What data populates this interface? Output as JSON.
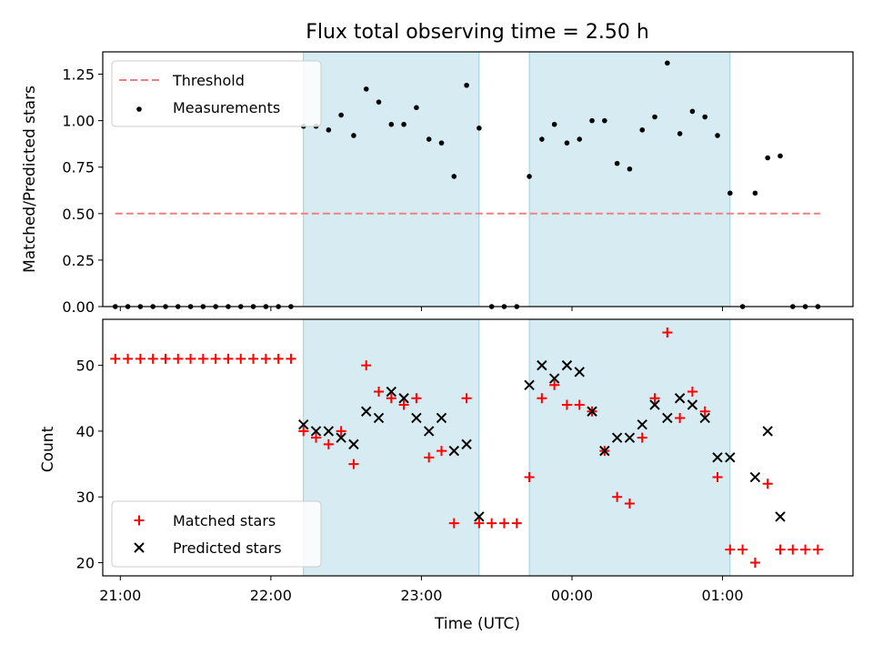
{
  "chart_data": {
    "type": "scatter",
    "title": "Flux total observing time = 2.50 h",
    "xlabel": "Time (UTC)",
    "x_ticks": [
      "21:00",
      "22:00",
      "23:00",
      "00:00",
      "01:00"
    ],
    "xlim": [
      "20:53",
      "01:52"
    ],
    "shaded_intervals": [
      [
        "22:13",
        "23:23"
      ],
      [
        "23:43",
        "01:03"
      ]
    ],
    "panels": [
      {
        "ylabel": "Matched/Predicted stars",
        "ylim": [
          0,
          1.37
        ],
        "y_ticks": [
          "0.00",
          "0.25",
          "0.50",
          "0.75",
          "1.00",
          "1.25"
        ],
        "legend_position": "top-left",
        "series": [
          {
            "name": "Threshold",
            "type": "line",
            "style": "dashed",
            "color": "#f08080",
            "x": [
              "20:58",
              "01:39"
            ],
            "y": [
              0.5,
              0.5
            ]
          },
          {
            "name": "Measurements",
            "type": "scatter",
            "marker": "dot",
            "color": "#000000",
            "x": [
              "20:58",
              "21:03",
              "21:08",
              "21:13",
              "21:18",
              "21:23",
              "21:28",
              "21:33",
              "21:38",
              "21:43",
              "21:48",
              "21:53",
              "21:58",
              "22:03",
              "22:08",
              "22:13",
              "22:18",
              "22:23",
              "22:28",
              "22:33",
              "22:38",
              "22:43",
              "22:48",
              "22:53",
              "22:58",
              "23:03",
              "23:08",
              "23:13",
              "23:18",
              "23:23",
              "23:28",
              "23:33",
              "23:38",
              "23:43",
              "23:48",
              "23:53",
              "23:58",
              "00:03",
              "00:08",
              "00:13",
              "00:18",
              "00:23",
              "00:28",
              "00:33",
              "00:38",
              "00:43",
              "00:48",
              "00:53",
              "00:58",
              "01:03",
              "01:08",
              "01:13",
              "01:18",
              "01:23",
              "01:28",
              "01:33",
              "01:38"
            ],
            "y": [
              0,
              0,
              0,
              0,
              0,
              0,
              0,
              0,
              0,
              0,
              0,
              0,
              0,
              0,
              0,
              0.97,
              0.97,
              0.95,
              1.03,
              0.92,
              1.17,
              1.1,
              0.98,
              0.98,
              1.07,
              0.9,
              0.88,
              0.7,
              1.19,
              0.96,
              0,
              0,
              0,
              0.7,
              0.9,
              0.98,
              0.88,
              0.9,
              1.0,
              1.0,
              0.77,
              0.74,
              0.95,
              1.02,
              1.31,
              0.93,
              1.05,
              1.02,
              0.92,
              0.61,
              0,
              0.61,
              0.8,
              0.81,
              0,
              0,
              0
            ]
          }
        ]
      },
      {
        "ylabel": "Count",
        "ylim": [
          18,
          57
        ],
        "y_ticks": [
          "20",
          "30",
          "40",
          "50"
        ],
        "legend_position": "bottom-left",
        "series": [
          {
            "name": "Matched stars",
            "type": "scatter",
            "marker": "plus",
            "color": "#ff0000",
            "x": [
              "20:58",
              "21:03",
              "21:08",
              "21:13",
              "21:18",
              "21:23",
              "21:28",
              "21:33",
              "21:38",
              "21:43",
              "21:48",
              "21:53",
              "21:58",
              "22:03",
              "22:08",
              "22:13",
              "22:18",
              "22:23",
              "22:28",
              "22:33",
              "22:38",
              "22:43",
              "22:48",
              "22:53",
              "22:58",
              "23:03",
              "23:08",
              "23:13",
              "23:18",
              "23:23",
              "23:28",
              "23:33",
              "23:38",
              "23:43",
              "23:48",
              "23:53",
              "23:58",
              "00:03",
              "00:08",
              "00:13",
              "00:18",
              "00:23",
              "00:28",
              "00:33",
              "00:38",
              "00:43",
              "00:48",
              "00:53",
              "00:58",
              "01:03",
              "01:08",
              "01:13",
              "01:18",
              "01:23",
              "01:28",
              "01:33",
              "01:38"
            ],
            "y": [
              51,
              51,
              51,
              51,
              51,
              51,
              51,
              51,
              51,
              51,
              51,
              51,
              51,
              51,
              51,
              40,
              39,
              38,
              40,
              35,
              50,
              46,
              45,
              44,
              45,
              36,
              37,
              26,
              45,
              26,
              26,
              26,
              26,
              33,
              45,
              47,
              44,
              44,
              43,
              37,
              30,
              29,
              39,
              45,
              55,
              42,
              46,
              43,
              33,
              22,
              22,
              20,
              32,
              22,
              22,
              22,
              22
            ]
          },
          {
            "name": "Predicted stars",
            "type": "scatter",
            "marker": "x",
            "color": "#000000",
            "x": [
              "22:13",
              "22:18",
              "22:23",
              "22:28",
              "22:33",
              "22:38",
              "22:43",
              "22:48",
              "22:53",
              "22:58",
              "23:03",
              "23:08",
              "23:13",
              "23:18",
              "23:23",
              "23:43",
              "23:48",
              "23:53",
              "23:58",
              "00:03",
              "00:08",
              "00:13",
              "00:18",
              "00:23",
              "00:28",
              "00:33",
              "00:38",
              "00:43",
              "00:48",
              "00:53",
              "00:58",
              "01:03",
              "01:13",
              "01:18",
              "01:23"
            ],
            "y": [
              41,
              40,
              40,
              39,
              38,
              43,
              42,
              46,
              45,
              42,
              40,
              42,
              37,
              38,
              27,
              47,
              50,
              48,
              50,
              49,
              43,
              37,
              39,
              39,
              41,
              44,
              42,
              45,
              44,
              42,
              36,
              36,
              33,
              40,
              27
            ]
          }
        ]
      }
    ]
  }
}
